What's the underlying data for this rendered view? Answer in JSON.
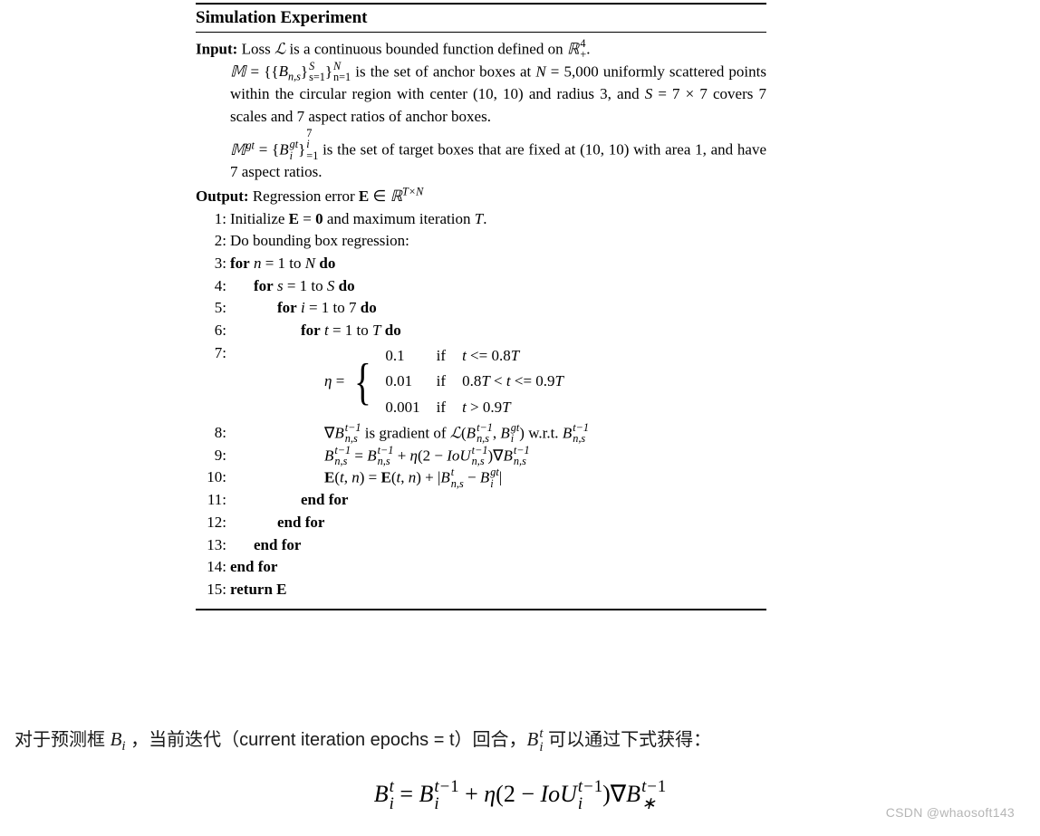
{
  "algorithm": {
    "title": "Simulation Experiment",
    "input_label": "Input:",
    "output_label": "Output:",
    "input_line1_a": " Loss ",
    "input_line1_b": " is a continuous bounded function defined on ",
    "input_line1_c": ".",
    "input_line2_a": " is the set of anchor boxes at ",
    "input_line3": "5,000 uniformly scattered points within the circular region with center (10, 10) and radius 3, and ",
    "input_line3b": " covers 7 scales and 7 aspect ratios of anchor boxes.",
    "input_line4_a": " is the set of target boxes that are fixed at (10, 10) with area 1, and have 7 aspect ratios.",
    "output_text": " Regression error ",
    "steps": {
      "s1_a": "Initialize ",
      "s1_b": " and maximum iteration ",
      "s1_c": ".",
      "s2": "Do bounding box regression:",
      "s3_a": "for",
      "s3_b": " = 1 to ",
      "s3_c": "do",
      "s4_b": " = 1 to ",
      "s5_b": " = 1 to 7 ",
      "s6_b": " = 1 to ",
      "eta_cases": {
        "r1": [
          "0.1",
          "if",
          "t <= 0.8T"
        ],
        "r2": [
          "0.01",
          "if",
          "0.8T < t <= 0.9T"
        ],
        "r3": [
          "0.001",
          "if",
          "t > 0.9T"
        ]
      },
      "s8_a": " is gradient of ",
      "s8_b": " w.r.t. ",
      "end": "end for",
      "ret": "return "
    },
    "numbers": [
      "1:",
      "2:",
      "3:",
      "4:",
      "5:",
      "6:",
      "7:",
      "8:",
      "9:",
      "10:",
      "11:",
      "12:",
      "13:",
      "14:",
      "15:"
    ]
  },
  "caption": {
    "t1": "对于预测框 ",
    "t2": " ，当前迭代（current iteration epochs = t）回合，",
    "t3": " 可以通过下式获得：",
    "Bi": "B",
    "Bi_sub": "i",
    "Bit_sup": "t"
  },
  "watermark": "CSDN @whaosoft143",
  "colors": {
    "text": "#000000",
    "bg": "#ffffff",
    "watermark": "rgba(120,120,120,0.55)"
  }
}
